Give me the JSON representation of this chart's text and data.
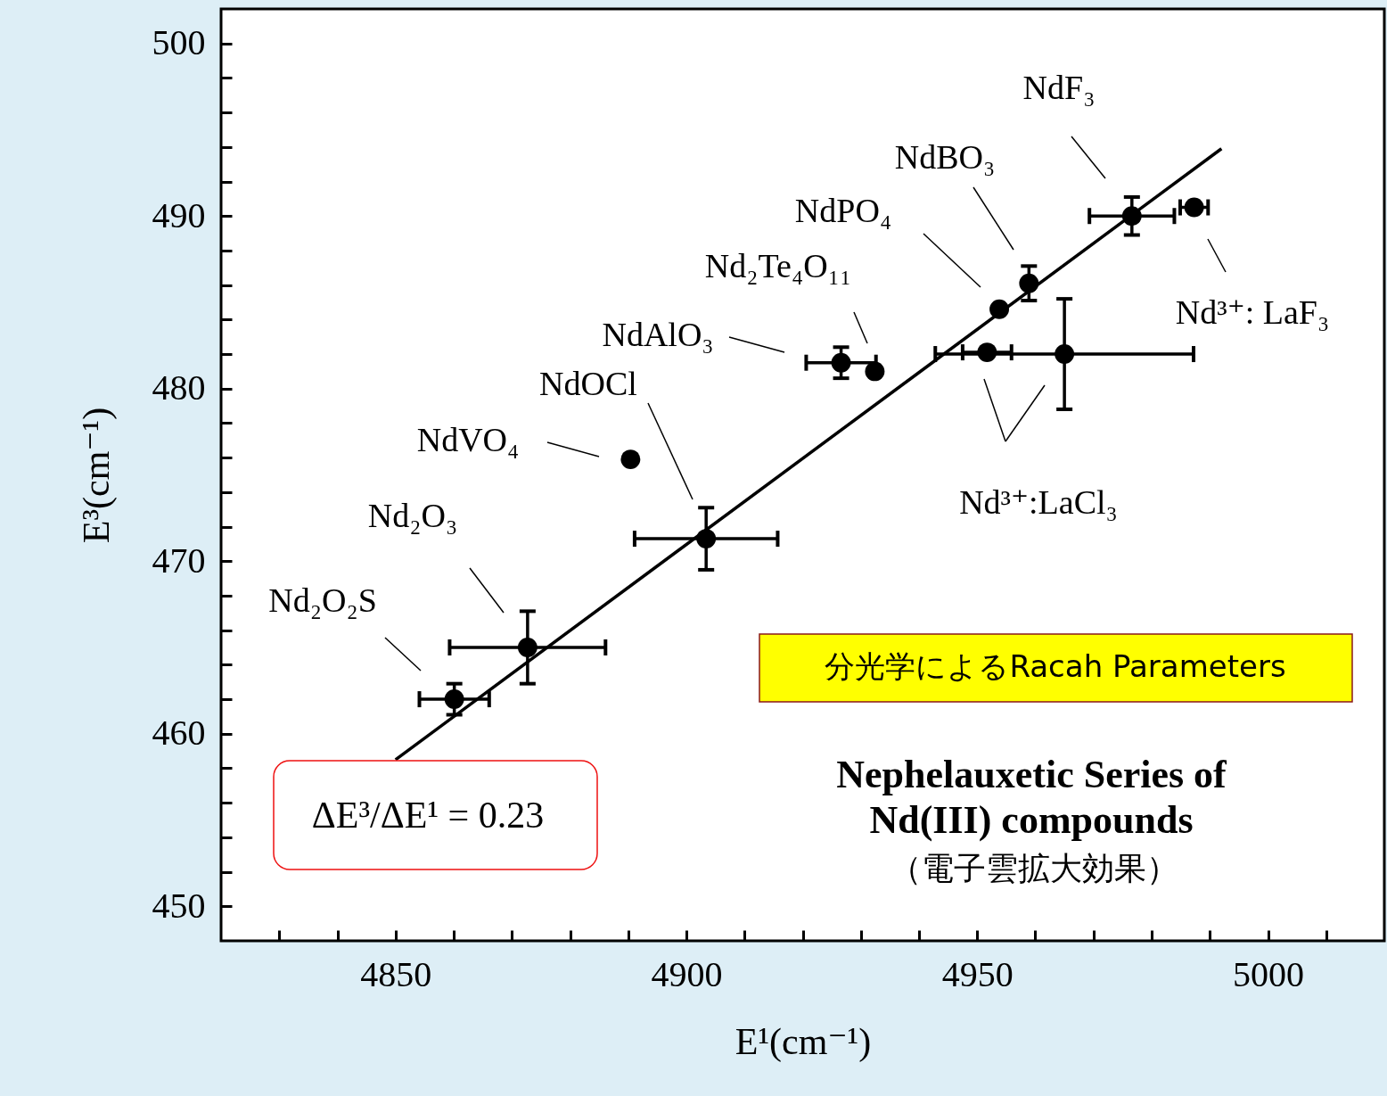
{
  "chart_data": {
    "type": "scatter",
    "xlabel": "E¹(cm⁻¹)",
    "ylabel": "E³(cm⁻¹)",
    "xlim": [
      4820,
      5020
    ],
    "ylim": [
      448,
      502
    ],
    "xticks": [
      {
        "value": 4830,
        "label": null
      },
      {
        "value": 4840,
        "label": null
      },
      4850,
      {
        "value": 4860,
        "label": null
      },
      {
        "value": 4870,
        "label": null
      },
      {
        "value": 4880,
        "label": null
      },
      {
        "value": 4890,
        "label": null
      },
      4900,
      {
        "value": 4910,
        "label": null
      },
      {
        "value": 4920,
        "label": null
      },
      {
        "value": 4930,
        "label": null
      },
      {
        "value": 4940,
        "label": null
      },
      4950,
      {
        "value": 4960,
        "label": null
      },
      {
        "value": 4970,
        "label": null
      },
      {
        "value": 4980,
        "label": null
      },
      {
        "value": 4990,
        "label": null
      },
      5000,
      {
        "value": 5010,
        "label": null
      }
    ],
    "yticks": [
      450,
      {
        "value": 452,
        "label": null
      },
      {
        "value": 454,
        "label": null
      },
      {
        "value": 456,
        "label": null
      },
      {
        "value": 458,
        "label": null
      },
      460,
      {
        "value": 462,
        "label": null
      },
      {
        "value": 464,
        "label": null
      },
      {
        "value": 466,
        "label": null
      },
      {
        "value": 468,
        "label": null
      },
      470,
      {
        "value": 472,
        "label": null
      },
      {
        "value": 474,
        "label": null
      },
      {
        "value": 476,
        "label": null
      },
      {
        "value": 478,
        "label": null
      },
      480,
      {
        "value": 482,
        "label": null
      },
      {
        "value": 484,
        "label": null
      },
      {
        "value": 486,
        "label": null
      },
      {
        "value": 488,
        "label": null
      },
      490,
      {
        "value": 492,
        "label": null
      },
      {
        "value": 494,
        "label": null
      },
      {
        "value": 496,
        "label": null
      },
      {
        "value": 498,
        "label": null
      },
      500
    ],
    "series": [
      {
        "type": "scatter",
        "color": "#000000",
        "marker": "circle",
        "x": [
          4860.1,
          4872.7,
          4890.4,
          4903.4,
          4926.6,
          4932.4,
          4951.7,
          4953.8,
          4958.9,
          4965.0,
          4976.6,
          4987.3
        ],
        "values": [
          462.0,
          465.0,
          475.9,
          471.3,
          481.5,
          481.0,
          482.1,
          484.6,
          486.1,
          482.0,
          490.0,
          490.5
        ],
        "errors": [
          0.9,
          2.1,
          null,
          1.8,
          0.9,
          null,
          null,
          null,
          1.0,
          3.2,
          1.1,
          null
        ],
        "xerrors": [
          6,
          13.4,
          null,
          12.3,
          6,
          null,
          4.2,
          null,
          null,
          22.2,
          7.3,
          2.4
        ]
      },
      {
        "type": "line",
        "color": "#000000",
        "x": [
          4850,
          4992
        ],
        "values": [
          458.5,
          493.9
        ]
      }
    ],
    "annotations": [
      "Nd₂O₂S",
      "Nd₂O₃",
      "NdVO₄",
      "NdOCl",
      "NdAlO₃",
      "Nd₂Te₄O₁₁",
      "NdPO₄",
      "NdBO₃",
      "NdF₃",
      "Nd³⁺: LaF₃",
      "Nd³⁺:LaCl₃",
      "分光学によるRacah Parameters",
      "Nephelauxetic Series of\nNd(III) compounds",
      "（電子雲拡大効果）",
      "ΔE³/ΔE¹ = 0.23"
    ]
  }
}
